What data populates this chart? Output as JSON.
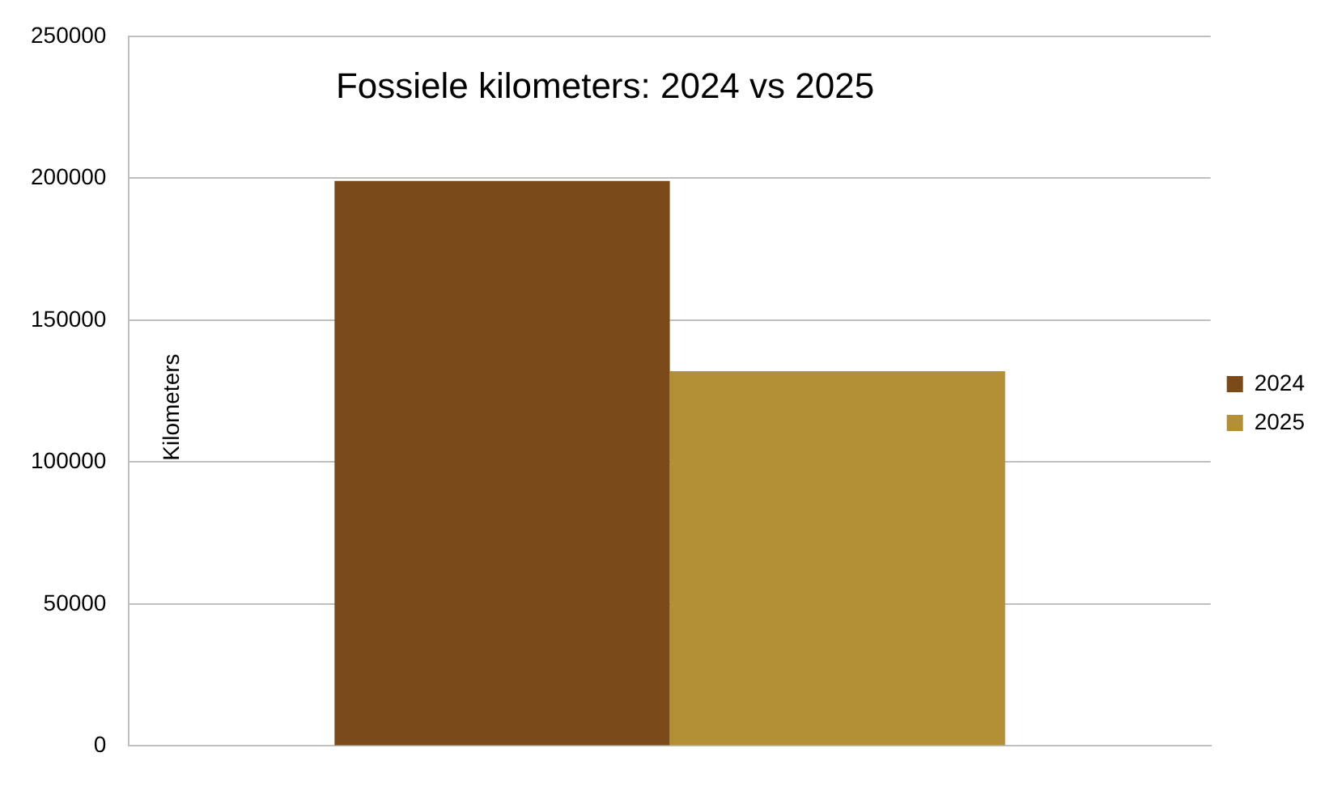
{
  "chart_data": {
    "type": "bar",
    "title": "Fossiele kilometers: 2024 vs 2025",
    "ylabel": "Kilometers",
    "categories": [
      null
    ],
    "series": [
      {
        "name": "2024",
        "color": "#7b4a19",
        "values": [
          199000
        ]
      },
      {
        "name": "2025",
        "color": "#b38f36",
        "values": [
          132000
        ]
      }
    ],
    "ylim": [
      0,
      250000
    ],
    "yticks": [
      0,
      50000,
      100000,
      150000,
      200000,
      250000
    ],
    "grid": "y",
    "legend": "right"
  }
}
